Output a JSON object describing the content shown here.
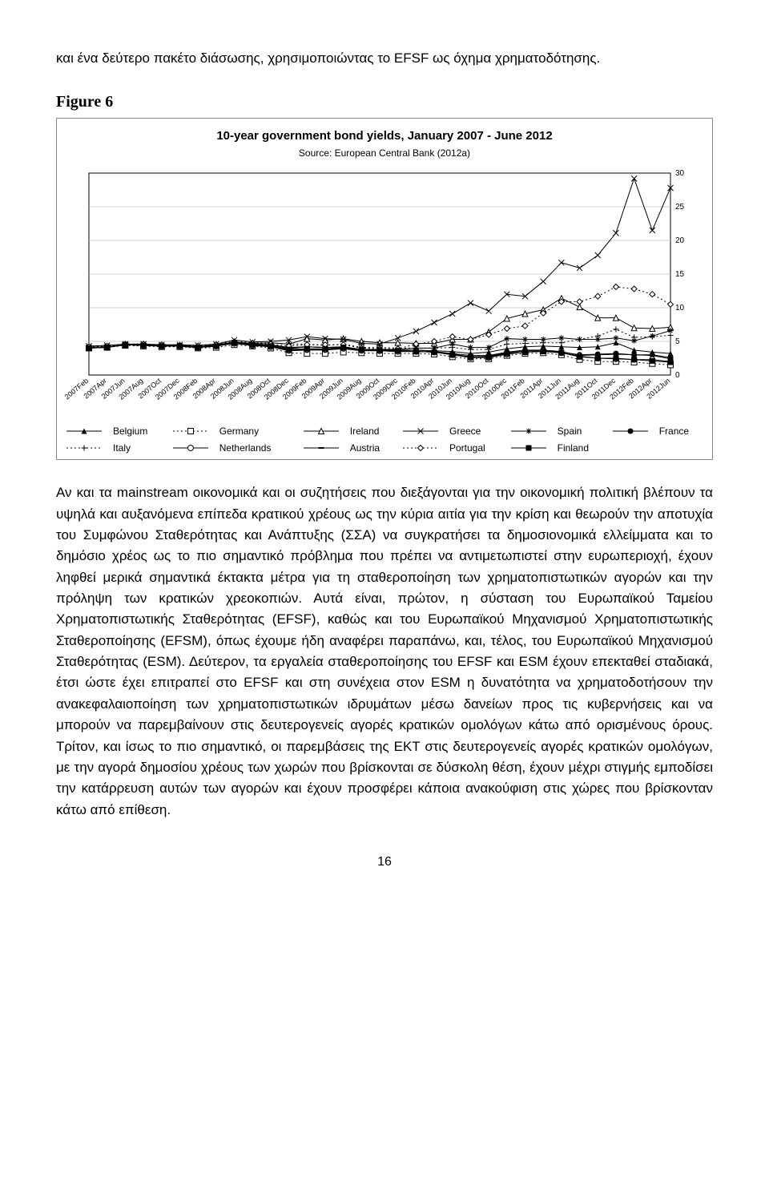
{
  "para_top": "και ένα δεύτερο πακέτο διάσωσης, χρησιμοποιώντας το EFSF ως όχημα χρηματοδότησης.",
  "figure_label": "Figure 6",
  "chart": {
    "type": "line",
    "title": "10-year government bond yields, January 2007 - June 2012",
    "subtitle": "Source: European Central Bank (2012a)",
    "title_fontsize": 15,
    "subtitle_fontsize": 12,
    "background_color": "#ffffff",
    "border_color": "#888888",
    "grid_color": "#bfbfbf",
    "axis_color": "#000000",
    "xlabels": [
      "2007Feb",
      "2007Apr",
      "2007Jun",
      "2007Aug",
      "2007Oct",
      "2007Dec",
      "2008Feb",
      "2008Apr",
      "2008Jun",
      "2008Aug",
      "2008Oct",
      "2008Dec",
      "2009Feb",
      "2009Apr",
      "2009Jun",
      "2009Aug",
      "2009Oct",
      "2009Dec",
      "2010Feb",
      "2010Apr",
      "2010Jun",
      "2010Aug",
      "2010Oct",
      "2010Dec",
      "2011Feb",
      "2011Apr",
      "2011Jun",
      "2011Aug",
      "2011Oct",
      "2011Dec",
      "2012Feb",
      "2012Apr",
      "2012Jun"
    ],
    "ylim": [
      0,
      30
    ],
    "ytick_step": 5,
    "tick_fontsize": 10,
    "legend_fontsize": 12,
    "line_color": "#000000",
    "line_width": 1,
    "marker_size": 3.5,
    "series": [
      {
        "name": "Belgium",
        "marker": "triangle_filled",
        "dash": "solid",
        "y": [
          4.1,
          4.2,
          4.5,
          4.5,
          4.4,
          4.4,
          4.2,
          4.4,
          4.8,
          4.6,
          4.5,
          4.1,
          4.2,
          4.1,
          4.1,
          3.8,
          3.7,
          3.6,
          3.7,
          3.6,
          3.5,
          3.2,
          3.4,
          3.9,
          4.2,
          4.3,
          4.2,
          4.1,
          4.2,
          4.8,
          3.7,
          3.4,
          3.2
        ]
      },
      {
        "name": "Germany",
        "marker": "square_open",
        "dash": "dot",
        "y": [
          4.0,
          4.1,
          4.4,
          4.3,
          4.2,
          4.2,
          4.0,
          4.1,
          4.5,
          4.3,
          4.0,
          3.3,
          3.2,
          3.2,
          3.4,
          3.3,
          3.2,
          3.2,
          3.2,
          3.1,
          2.7,
          2.4,
          2.4,
          2.9,
          3.2,
          3.3,
          3.0,
          2.3,
          2.0,
          2.0,
          1.9,
          1.7,
          1.5
        ]
      },
      {
        "name": "Ireland",
        "marker": "triangle_open",
        "dash": "solid",
        "y": [
          4.1,
          4.2,
          4.5,
          4.5,
          4.4,
          4.4,
          4.2,
          4.5,
          4.9,
          4.7,
          4.8,
          4.6,
          5.4,
          5.2,
          5.4,
          5.0,
          4.8,
          4.8,
          4.7,
          4.7,
          5.3,
          5.3,
          6.4,
          8.4,
          9.1,
          9.7,
          11.4,
          10.1,
          8.5,
          8.5,
          7.0,
          6.9,
          7.1
        ]
      },
      {
        "name": "Greece",
        "marker": "x",
        "dash": "solid",
        "y": [
          4.3,
          4.4,
          4.6,
          4.6,
          4.5,
          4.5,
          4.4,
          4.6,
          5.2,
          4.9,
          5.0,
          5.2,
          5.7,
          5.4,
          5.3,
          4.7,
          4.6,
          5.5,
          6.5,
          7.8,
          9.1,
          10.7,
          9.5,
          12.0,
          11.7,
          13.9,
          16.7,
          15.9,
          17.8,
          21.1,
          29.2,
          21.5,
          27.8
        ]
      },
      {
        "name": "Spain",
        "marker": "asterisk",
        "dash": "solid",
        "y": [
          4.1,
          4.2,
          4.5,
          4.4,
          4.4,
          4.3,
          4.1,
          4.4,
          4.8,
          4.6,
          4.5,
          4.0,
          4.2,
          4.1,
          4.2,
          3.8,
          3.8,
          3.8,
          4.0,
          4.0,
          4.6,
          4.1,
          4.1,
          5.4,
          5.3,
          5.3,
          5.5,
          5.3,
          5.3,
          5.5,
          5.1,
          5.8,
          6.6
        ]
      },
      {
        "name": "France",
        "marker": "circle_filled",
        "dash": "solid",
        "y": [
          4.1,
          4.2,
          4.5,
          4.4,
          4.3,
          4.3,
          4.1,
          4.3,
          4.7,
          4.4,
          4.2,
          3.6,
          3.7,
          3.7,
          3.9,
          3.6,
          3.6,
          3.5,
          3.5,
          3.4,
          3.1,
          2.7,
          2.8,
          3.3,
          3.6,
          3.6,
          3.4,
          3.0,
          3.1,
          3.2,
          3.0,
          3.0,
          2.6
        ]
      },
      {
        "name": "Italy",
        "marker": "plus",
        "dash": "dot",
        "y": [
          4.2,
          4.3,
          4.6,
          4.6,
          4.5,
          4.5,
          4.4,
          4.6,
          5.0,
          4.8,
          4.8,
          4.6,
          4.6,
          4.4,
          4.6,
          4.1,
          4.1,
          4.0,
          4.0,
          4.0,
          4.1,
          3.8,
          3.8,
          4.6,
          4.7,
          4.8,
          4.8,
          5.3,
          5.8,
          6.8,
          5.6,
          5.7,
          5.9
        ]
      },
      {
        "name": "Netherlands",
        "marker": "circle_open",
        "dash": "solid",
        "y": [
          4.0,
          4.1,
          4.5,
          4.4,
          4.3,
          4.3,
          4.1,
          4.3,
          4.7,
          4.4,
          4.2,
          3.7,
          3.8,
          3.8,
          4.0,
          3.7,
          3.6,
          3.5,
          3.5,
          3.4,
          3.0,
          2.6,
          2.6,
          3.1,
          3.4,
          3.6,
          3.3,
          2.8,
          2.5,
          2.4,
          2.3,
          2.3,
          2.0
        ]
      },
      {
        "name": "Austria",
        "marker": "bar",
        "dash": "solid",
        "y": [
          4.1,
          4.2,
          4.5,
          4.5,
          4.4,
          4.3,
          4.1,
          4.4,
          4.8,
          4.5,
          4.4,
          3.9,
          4.2,
          4.1,
          4.2,
          3.8,
          3.8,
          3.7,
          3.7,
          3.5,
          3.2,
          2.9,
          2.9,
          3.4,
          3.7,
          3.7,
          3.5,
          2.9,
          3.0,
          3.1,
          3.0,
          2.9,
          2.4
        ]
      },
      {
        "name": "Portugal",
        "marker": "diamond_open",
        "dash": "dot",
        "y": [
          4.2,
          4.3,
          4.6,
          4.6,
          4.5,
          4.4,
          4.3,
          4.5,
          4.9,
          4.7,
          4.6,
          4.3,
          4.5,
          4.5,
          4.5,
          4.0,
          3.9,
          3.9,
          4.6,
          5.0,
          5.7,
          5.3,
          6.0,
          6.9,
          7.3,
          9.2,
          10.9,
          10.9,
          11.7,
          13.1,
          12.8,
          12.0,
          10.5
        ]
      },
      {
        "name": "Finland",
        "marker": "square_filled",
        "dash": "solid",
        "y": [
          4.0,
          4.1,
          4.5,
          4.4,
          4.3,
          4.3,
          4.1,
          4.3,
          4.8,
          4.5,
          4.3,
          3.8,
          3.9,
          3.9,
          4.1,
          3.8,
          3.7,
          3.6,
          3.5,
          3.4,
          3.0,
          2.7,
          2.7,
          3.2,
          3.4,
          3.5,
          3.3,
          2.7,
          2.5,
          2.5,
          2.3,
          2.1,
          1.9
        ]
      }
    ],
    "legend_rows": [
      [
        "Belgium",
        "Germany",
        "Ireland",
        "Greece",
        "Spain",
        "France"
      ],
      [
        "Italy",
        "Netherlands",
        "Austria",
        "Portugal",
        "Finland",
        ""
      ]
    ]
  },
  "para_main": "Αν και τα mainstream οικονομικά και οι συζητήσεις που διεξάγονται για την οικονομική πολιτική βλέπουν τα υψηλά και αυξανόμενα επίπεδα κρατικού χρέους ως την κύρια αιτία για την κρίση και θεωρούν την αποτυχία του Συμφώνου Σταθερότητας και Ανάπτυξης (ΣΣΑ) να συγκρατήσει τα δημοσιονομικά ελλείμματα και το δημόσιο χρέος ως το πιο σημαντικό πρόβλημα που πρέπει να αντιμετωπιστεί στην ευρωπεριοχή, έχουν ληφθεί μερικά σημαντικά έκτακτα μέτρα για τη σταθεροποίηση των χρηματοπιστωτικών αγορών και την πρόληψη των κρατικών χρεοκοπιών. Αυτά είναι, πρώτον, η σύσταση του Ευρωπαϊκού Ταμείου Χρηματοπιστωτικής Σταθερότητας (EFSF), καθώς και του Ευρωπαϊκού Μηχανισμού Χρηματοπιστωτικής Σταθεροποίησης (EFSM), όπως έχουμε ήδη αναφέρει παραπάνω, και, τέλος, του Ευρωπαϊκού Μηχανισμού Σταθερότητας (ESM). Δεύτερον, τα εργαλεία σταθεροποίησης του EFSF και ESM έχουν επεκταθεί σταδιακά, έτσι ώστε έχει επιτραπεί στο EFSF και στη συνέχεια στον ESM η δυνατότητα να χρηματοδοτήσουν την ανακεφαλαιοποίηση των χρηματοπιστωτικών ιδρυμάτων μέσω δανείων προς τις κυβερνήσεις και να μπορούν να παρεμβαίνουν στις δευτερογενείς αγορές κρατικών ομολόγων κάτω από ορισμένους όρους. Τρίτον, και ίσως το πιο σημαντικό, οι παρεμβάσεις της ΕΚΤ στις δευτερογενείς αγορές κρατικών ομολόγων, με την αγορά δημοσίου χρέους των χωρών που βρίσκονται σε δύσκολη θέση, έχουν μέχρι στιγμής εμποδίσει την κατάρρευση αυτών των αγορών και έχουν προσφέρει κάποια ανακούφιση στις χώρες που βρίσκονταν κάτω από επίθεση.",
  "page_number": "16"
}
